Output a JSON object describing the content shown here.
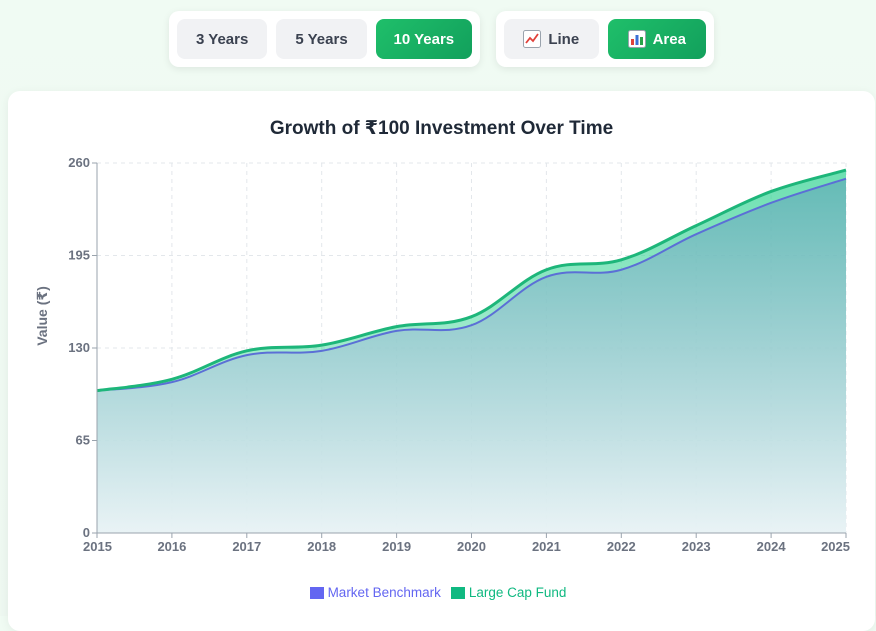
{
  "period_buttons": [
    {
      "label": "3 Years",
      "active": false
    },
    {
      "label": "5 Years",
      "active": false
    },
    {
      "label": "10 Years",
      "active": true
    }
  ],
  "type_buttons": [
    {
      "label": "Line",
      "icon": "line-chart-icon",
      "active": false
    },
    {
      "label": "Area",
      "icon": "bar-chart-icon",
      "active": true
    }
  ],
  "colors": {
    "benchmark": "#5b6fd6",
    "fund": "#1db67a",
    "accent": "#1fbf6a",
    "legend_benchmark_text": "#6366f1",
    "legend_fund_text": "#10b981"
  },
  "chart_data": {
    "type": "area",
    "title": "Growth of ₹100 Investment Over Time",
    "xlabel": "",
    "ylabel": "Value (₹)",
    "x": [
      "2015",
      "2016",
      "2017",
      "2018",
      "2019",
      "2020",
      "2021",
      "2022",
      "2023",
      "2024",
      "2025"
    ],
    "ylim": [
      0,
      260
    ],
    "yticks": [
      0,
      65,
      130,
      195,
      260
    ],
    "grid": true,
    "legend_position": "bottom",
    "series": [
      {
        "name": "Market Benchmark",
        "values": [
          100,
          106,
          125,
          128,
          142,
          146,
          180,
          185,
          210,
          232,
          249
        ]
      },
      {
        "name": "Large Cap Fund",
        "values": [
          100,
          108,
          128,
          132,
          145,
          152,
          185,
          192,
          216,
          240,
          255
        ]
      }
    ]
  }
}
